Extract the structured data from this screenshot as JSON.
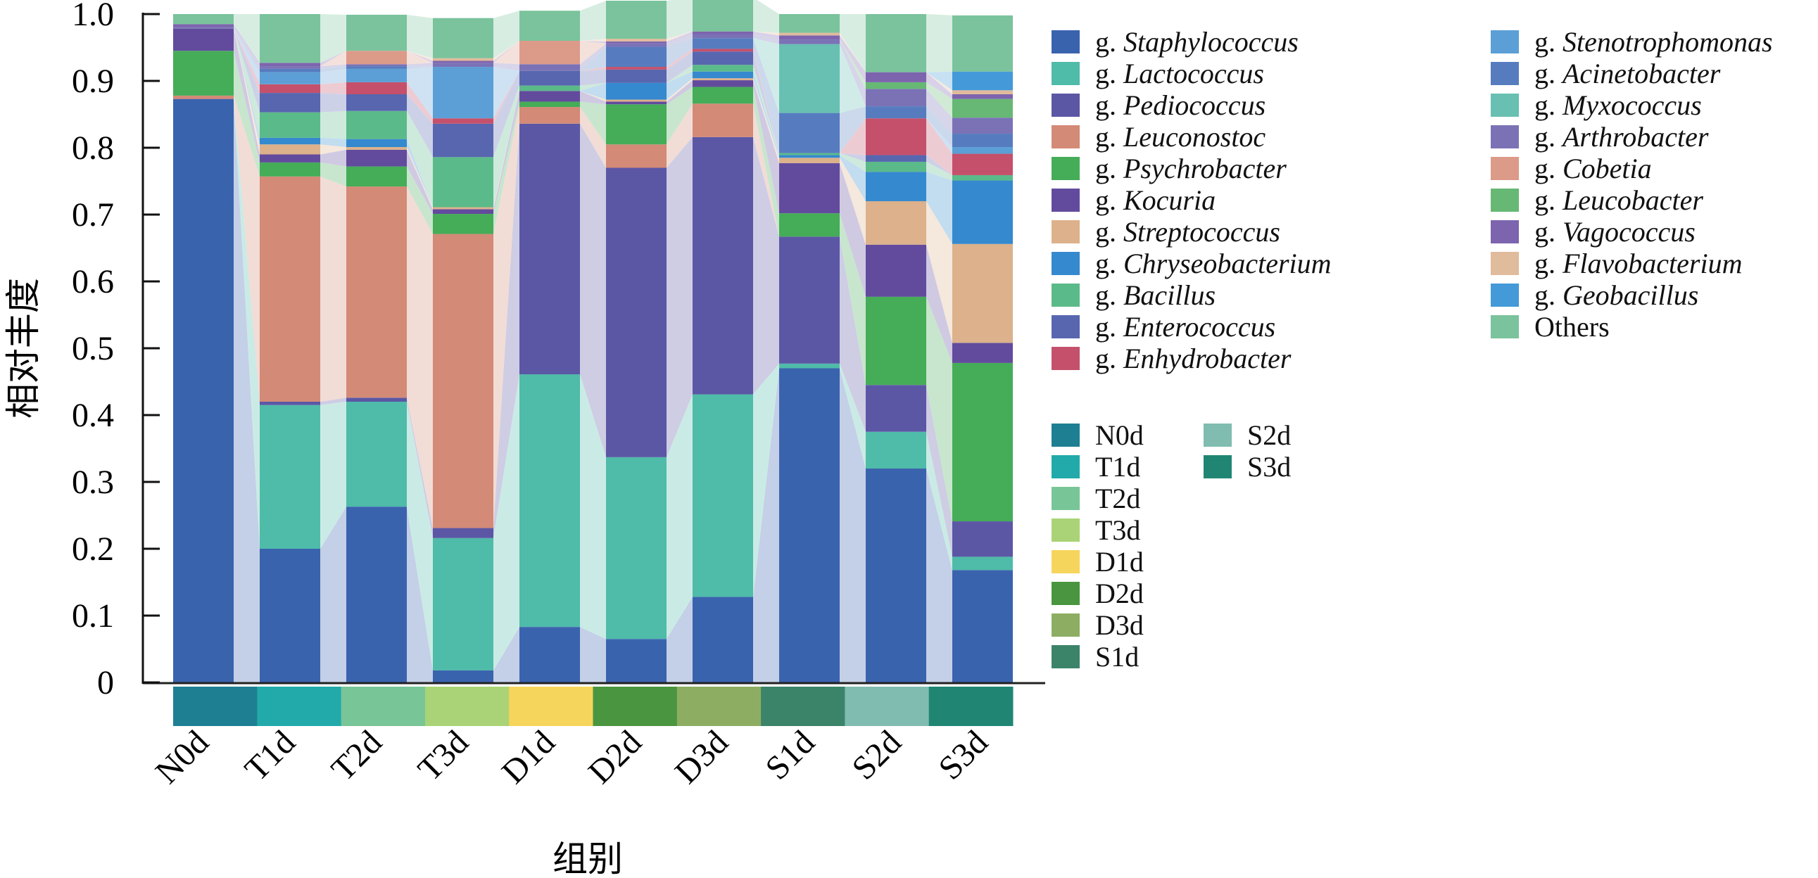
{
  "chart_data": {
    "type": "bar",
    "stacked": true,
    "title": "",
    "xlabel": "组别",
    "ylabel": "相对丰度",
    "ylim": [
      0,
      1.0
    ],
    "yticks": [
      "0",
      "0.1",
      "0.2",
      "0.3",
      "0.4",
      "0.5",
      "0.6",
      "0.7",
      "0.8",
      "0.9",
      "1.0"
    ],
    "categories": [
      "N0d",
      "T1d",
      "T2d",
      "T3d",
      "D1d",
      "D2d",
      "D3d",
      "S1d",
      "S2d",
      "S3d"
    ],
    "group_colors": [
      "#1e7f93",
      "#21aaa9",
      "#78c597",
      "#a9d376",
      "#f6d55c",
      "#4a953f",
      "#8dad62",
      "#3b8469",
      "#80bcb0",
      "#208673"
    ],
    "legend_placement": "right",
    "series": [
      {
        "name": "g. Staphylococcus",
        "prefix": "g.",
        "genus": "Staphylococcus",
        "color": "#3a63ae",
        "values": [
          0.873,
          0.2,
          0.263,
          0.018,
          0.083,
          0.065,
          0.128,
          0.47,
          0.32,
          0.168
        ]
      },
      {
        "name": "g. Lactococcus",
        "prefix": "g.",
        "genus": "Lactococcus",
        "color": "#4fbba9",
        "values": [
          0.0,
          0.215,
          0.157,
          0.198,
          0.378,
          0.272,
          0.303,
          0.007,
          0.055,
          0.02
        ]
      },
      {
        "name": "g. Pediococcus",
        "prefix": "g.",
        "genus": "Pediococcus",
        "color": "#5b57a5",
        "values": [
          0.0,
          0.005,
          0.006,
          0.015,
          0.375,
          0.433,
          0.385,
          0.19,
          0.07,
          0.053
        ]
      },
      {
        "name": "g. Leuconostoc",
        "prefix": "g.",
        "genus": "Leuconostoc",
        "color": "#d38a76",
        "values": [
          0.005,
          0.337,
          0.316,
          0.44,
          0.025,
          0.035,
          0.05,
          0.0,
          0.0,
          0.0
        ]
      },
      {
        "name": "g. Psychrobacter",
        "prefix": "g.",
        "genus": "Psychrobacter",
        "color": "#45ac58",
        "values": [
          0.067,
          0.021,
          0.03,
          0.03,
          0.008,
          0.06,
          0.025,
          0.035,
          0.132,
          0.237
        ]
      },
      {
        "name": "g. Kocuria",
        "prefix": "g.",
        "genus": "Kocuria",
        "color": "#624b9d",
        "values": [
          0.033,
          0.012,
          0.025,
          0.007,
          0.016,
          0.004,
          0.01,
          0.075,
          0.078,
          0.03
        ]
      },
      {
        "name": "g. Streptococcus",
        "prefix": "g.",
        "genus": "Streptococcus",
        "color": "#dcb18b",
        "values": [
          0.0,
          0.015,
          0.004,
          0.003,
          0.0,
          0.003,
          0.003,
          0.008,
          0.065,
          0.148
        ]
      },
      {
        "name": "g. Chryseobacterium",
        "prefix": "g.",
        "genus": "Chryseobacterium",
        "color": "#3589ce",
        "values": [
          0.0,
          0.01,
          0.012,
          0.0,
          0.0,
          0.025,
          0.01,
          0.004,
          0.044,
          0.095
        ]
      },
      {
        "name": "g. Bacillus",
        "prefix": "g.",
        "genus": "Bacillus",
        "color": "#5bba89",
        "values": [
          0.0,
          0.038,
          0.042,
          0.075,
          0.008,
          0.0,
          0.01,
          0.003,
          0.015,
          0.008
        ]
      },
      {
        "name": "g. Enterococcus",
        "prefix": "g.",
        "genus": "Enterococcus",
        "color": "#5766af",
        "values": [
          0.0,
          0.029,
          0.025,
          0.05,
          0.022,
          0.02,
          0.02,
          0.0,
          0.01,
          0.0
        ]
      },
      {
        "name": "g. Enhydrobacter",
        "prefix": "g.",
        "genus": "Enhydrobacter",
        "color": "#c4506b",
        "values": [
          0.0,
          0.013,
          0.018,
          0.008,
          0.0,
          0.004,
          0.004,
          0.0,
          0.055,
          0.032
        ]
      },
      {
        "name": "g. Stenotrophomonas",
        "prefix": "g.",
        "genus": "Stenotrophomonas",
        "color": "#5b9fd6",
        "values": [
          0.0,
          0.018,
          0.02,
          0.077,
          0.0,
          0.0,
          0.0,
          0.0,
          0.0,
          0.01
        ]
      },
      {
        "name": "g. Acinetobacter",
        "prefix": "g.",
        "genus": "Acinetobacter",
        "color": "#567cbf",
        "values": [
          0.0,
          0.005,
          0.004,
          0.0,
          0.0,
          0.03,
          0.016,
          0.06,
          0.018,
          0.02
        ]
      },
      {
        "name": "g. Myxococcus",
        "prefix": "g.",
        "genus": "Myxococcus",
        "color": "#67c0b2",
        "values": [
          0.0,
          0.0,
          0.0,
          0.0,
          0.0,
          0.0,
          0.0,
          0.103,
          0.0,
          0.0
        ]
      },
      {
        "name": "g. Arthrobacter",
        "prefix": "g.",
        "genus": "Arthrobacter",
        "color": "#7b72b6",
        "values": [
          0.003,
          0.004,
          0.003,
          0.006,
          0.01,
          0.005,
          0.006,
          0.007,
          0.026,
          0.024
        ]
      },
      {
        "name": "g. Cobetia",
        "prefix": "g.",
        "genus": "Cobetia",
        "color": "#dc9a89",
        "values": [
          0.0,
          0.0,
          0.02,
          0.0,
          0.035,
          0.0,
          0.0,
          0.0,
          0.0,
          0.0
        ]
      },
      {
        "name": "g. Leucobacter",
        "prefix": "g.",
        "genus": "Leucobacter",
        "color": "#66b874",
        "values": [
          0.0,
          0.0,
          0.0,
          0.0,
          0.0,
          0.0,
          0.0,
          0.0,
          0.01,
          0.028
        ]
      },
      {
        "name": "g. Vagococcus",
        "prefix": "g.",
        "genus": "Vagococcus",
        "color": "#7d64ae",
        "values": [
          0.004,
          0.005,
          0.0,
          0.003,
          0.0,
          0.003,
          0.004,
          0.006,
          0.015,
          0.007
        ]
      },
      {
        "name": "g. Flavobacterium",
        "prefix": "g.",
        "genus": "Flavobacterium",
        "color": "#e0bb9c",
        "values": [
          0.0,
          0.0,
          0.0,
          0.004,
          0.0,
          0.004,
          0.0,
          0.004,
          0.0,
          0.006
        ]
      },
      {
        "name": "g. Geobacillus",
        "prefix": "g.",
        "genus": "Geobacillus",
        "color": "#449ad8",
        "values": [
          0.0,
          0.0,
          0.0,
          0.0,
          0.0,
          0.0,
          0.0,
          0.0,
          0.0,
          0.028
        ]
      },
      {
        "name": "Others",
        "prefix": "",
        "genus": "Others",
        "color": "#7ac39c",
        "values": [
          0.015,
          0.073,
          0.054,
          0.06,
          0.045,
          0.057,
          0.051,
          0.028,
          0.087,
          0.084
        ]
      }
    ]
  }
}
